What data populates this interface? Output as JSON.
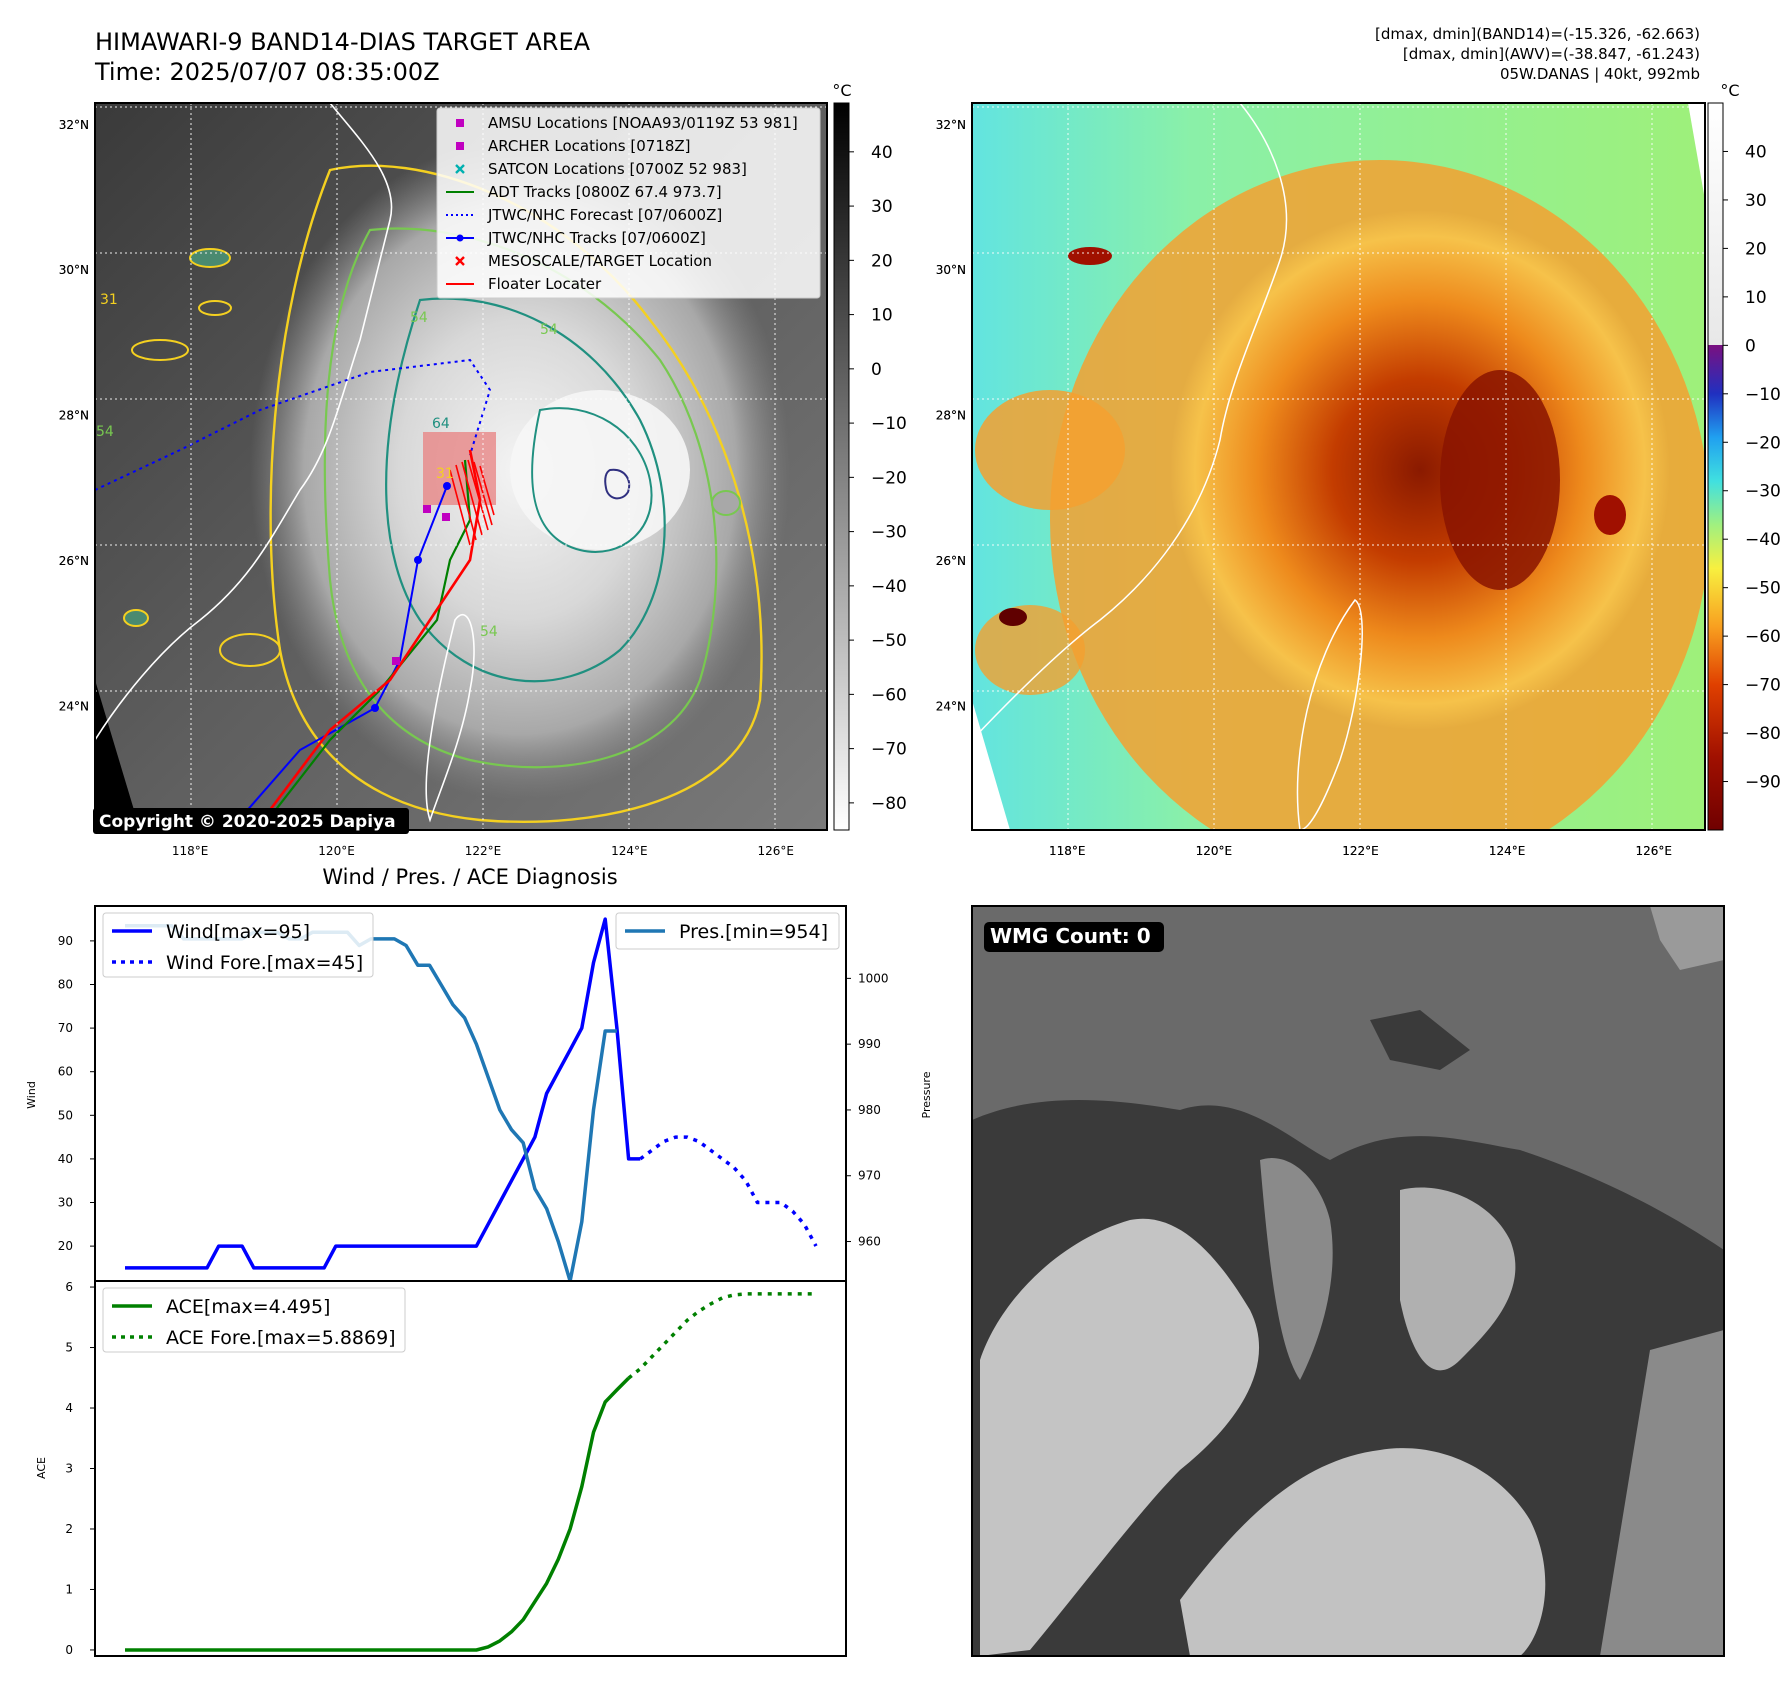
{
  "header": {
    "title_line1": "HIMAWARI-9 BAND14-DIAS TARGET AREA",
    "title_line2": "Time: 2025/07/07 08:35:00Z",
    "info_line1": "[dmax, dmin](BAND14)=(-15.326, -62.663)",
    "info_line2": "[dmax, dmin](AWV)=(-38.847, -61.243)",
    "info_line3": "05W.DANAS | 40kt, 992mb"
  },
  "maps": {
    "lon_labels": [
      "118°E",
      "120°E",
      "122°E",
      "124°E",
      "126°E"
    ],
    "lat_labels": [
      "32°N",
      "30°N",
      "28°N",
      "26°N",
      "24°N"
    ],
    "lon_values": [
      118,
      120,
      122,
      124,
      126
    ],
    "lat_values": [
      32,
      30,
      28,
      26,
      24
    ],
    "lon_range": [
      116.7,
      126.7
    ],
    "lat_range": [
      22.3,
      32.3
    ],
    "copyright": "Copyright © 2020-2025 Dapiya",
    "contour_labels": [
      "31",
      "54",
      "54",
      "64",
      "54",
      "54",
      "31"
    ]
  },
  "legend_map": {
    "items": [
      {
        "label": "AMSU Locations [NOAA93/0119Z 53 981]",
        "color": "#c000c0",
        "kind": "square"
      },
      {
        "label": "ARCHER Locations [0718Z]",
        "color": "#c000c0",
        "kind": "square"
      },
      {
        "label": "SATCON Locations [0700Z 52 983]",
        "color": "#00b0b0",
        "kind": "x"
      },
      {
        "label": "ADT Tracks [0800Z 67.4 973.7]",
        "color": "#008000",
        "kind": "line"
      },
      {
        "label": "JTWC/NHC Forecast [07/0600Z]",
        "color": "#0000ff",
        "kind": "dotted"
      },
      {
        "label": "JTWC/NHC Tracks [07/0600Z]",
        "color": "#0000ff",
        "kind": "line-dot"
      },
      {
        "label": "MESOSCALE/TARGET Location",
        "color": "#ff0000",
        "kind": "x"
      },
      {
        "label": "Floater Locater",
        "color": "#ff0000",
        "kind": "line"
      }
    ]
  },
  "colorbar_band14": {
    "unit": "°C",
    "ticks": [
      "40",
      "30",
      "20",
      "10",
      "0",
      "−10",
      "−20",
      "−30",
      "−40",
      "−50",
      "−60",
      "−70",
      "−80"
    ],
    "range": [
      -85,
      49
    ]
  },
  "colorbar_awv": {
    "unit": "°C",
    "ticks": [
      "40",
      "30",
      "20",
      "10",
      "0",
      "−10",
      "−20",
      "−30",
      "−40",
      "−50",
      "−60",
      "−70",
      "−80",
      "−90"
    ],
    "range": [
      -100,
      50
    ]
  },
  "diagnosis": {
    "title": "Wind / Pres. / ACE Diagnosis",
    "wind_ylabel": "Wind",
    "pres_ylabel": "Pressure",
    "ace_ylabel": "ACE",
    "legend_wind": "Wind[max=95]",
    "legend_wind_fore": "Wind Fore.[max=45]",
    "legend_pres": "Pres.[min=954]",
    "legend_ace": "ACE[max=4.495]",
    "legend_ace_fore": "ACE Fore.[max=5.8869]",
    "wind_ticks": [
      "20",
      "30",
      "40",
      "50",
      "60",
      "70",
      "80",
      "90"
    ],
    "pres_ticks": [
      "960",
      "970",
      "980",
      "990",
      "1000"
    ],
    "ace_ticks": [
      "0",
      "1",
      "2",
      "3",
      "4",
      "5",
      "6"
    ]
  },
  "chart_data": [
    {
      "type": "line",
      "title": "Wind / Pres. / ACE Diagnosis",
      "xlabel": "",
      "ylabel": "Wind",
      "ylim": [
        12,
        98
      ],
      "x": [
        0,
        1,
        2,
        3,
        4,
        5,
        6,
        7,
        8,
        9,
        10,
        11,
        12,
        13,
        14,
        15,
        16,
        17,
        18,
        19,
        20,
        21,
        22,
        23,
        24,
        25,
        26,
        27,
        28,
        29,
        30,
        31,
        32,
        33,
        34,
        35,
        36,
        37,
        38,
        39,
        40,
        41,
        42,
        43,
        44,
        45,
        46,
        47,
        48,
        49,
        50,
        51,
        52,
        53,
        54,
        55,
        56,
        57,
        58,
        59
      ],
      "series": [
        {
          "name": "Wind[max=95]",
          "color": "#0000ff",
          "style": "solid",
          "values": [
            15,
            15,
            15,
            15,
            15,
            15,
            15,
            15,
            20,
            20,
            20,
            15,
            15,
            15,
            15,
            15,
            15,
            15,
            20,
            20,
            20,
            20,
            20,
            20,
            20,
            20,
            20,
            20,
            20,
            20,
            20,
            25,
            30,
            35,
            40,
            45,
            55,
            60,
            65,
            70,
            85,
            95,
            70,
            40,
            40,
            null,
            null,
            null,
            null,
            null,
            null,
            null,
            null,
            null,
            null,
            null,
            null,
            null,
            null,
            null
          ]
        },
        {
          "name": "Wind Fore.[max=45]",
          "color": "#0000ff",
          "style": "dotted",
          "values": [
            null,
            null,
            null,
            null,
            null,
            null,
            null,
            null,
            null,
            null,
            null,
            null,
            null,
            null,
            null,
            null,
            null,
            null,
            null,
            null,
            null,
            null,
            null,
            null,
            null,
            null,
            null,
            null,
            null,
            null,
            null,
            null,
            null,
            null,
            null,
            null,
            null,
            null,
            null,
            null,
            null,
            null,
            null,
            null,
            40,
            42,
            44,
            45,
            45,
            44,
            42,
            40,
            38,
            35,
            30,
            30,
            30,
            28,
            25,
            20
          ]
        }
      ]
    },
    {
      "type": "line",
      "ylabel": "Pressure",
      "ylim": [
        954,
        1011
      ],
      "x": [
        0,
        1,
        2,
        3,
        4,
        5,
        6,
        7,
        8,
        9,
        10,
        11,
        12,
        13,
        14,
        15,
        16,
        17,
        18,
        19,
        20,
        21,
        22,
        23,
        24,
        25,
        26,
        27,
        28,
        29,
        30,
        31,
        32,
        33,
        34,
        35,
        36,
        37,
        38,
        39,
        40,
        41,
        42,
        43,
        44
      ],
      "series": [
        {
          "name": "Pres.[min=954]",
          "color": "#1f77b4",
          "style": "solid",
          "values": [
            1008,
            1008,
            1008,
            1008,
            1008,
            1006,
            1006,
            1006,
            1006,
            1006,
            1006,
            1007,
            1007,
            1007,
            1006,
            1006,
            1007,
            1007,
            1007,
            1007,
            1005,
            1006,
            1006,
            1006,
            1005,
            1002,
            1002,
            999,
            996,
            994,
            990,
            985,
            980,
            977,
            975,
            968,
            965,
            960,
            954,
            963,
            980,
            992,
            992,
            null,
            null
          ]
        }
      ]
    },
    {
      "type": "line",
      "ylabel": "ACE",
      "ylim": [
        -0.1,
        6.1
      ],
      "x": [
        0,
        1,
        2,
        3,
        4,
        5,
        6,
        7,
        8,
        9,
        10,
        11,
        12,
        13,
        14,
        15,
        16,
        17,
        18,
        19,
        20,
        21,
        22,
        23,
        24,
        25,
        26,
        27,
        28,
        29,
        30,
        31,
        32,
        33,
        34,
        35,
        36,
        37,
        38,
        39,
        40,
        41,
        42,
        43,
        44,
        45,
        46,
        47,
        48,
        49,
        50,
        51,
        52,
        53,
        54,
        55,
        56,
        57,
        58,
        59
      ],
      "series": [
        {
          "name": "ACE[max=4.495]",
          "color": "#008000",
          "style": "solid",
          "values": [
            0,
            0,
            0,
            0,
            0,
            0,
            0,
            0,
            0,
            0,
            0,
            0,
            0,
            0,
            0,
            0,
            0,
            0,
            0,
            0,
            0,
            0,
            0,
            0,
            0,
            0,
            0,
            0,
            0,
            0,
            0,
            0.05,
            0.15,
            0.3,
            0.5,
            0.8,
            1.1,
            1.5,
            2.0,
            2.7,
            3.6,
            4.1,
            4.3,
            4.495,
            null,
            null,
            null,
            null,
            null,
            null,
            null,
            null,
            null,
            null,
            null,
            null,
            null,
            null,
            null,
            null
          ]
        },
        {
          "name": "ACE Fore.[max=5.8869]",
          "color": "#008000",
          "style": "dotted",
          "values": [
            null,
            null,
            null,
            null,
            null,
            null,
            null,
            null,
            null,
            null,
            null,
            null,
            null,
            null,
            null,
            null,
            null,
            null,
            null,
            null,
            null,
            null,
            null,
            null,
            null,
            null,
            null,
            null,
            null,
            null,
            null,
            null,
            null,
            null,
            null,
            null,
            null,
            null,
            null,
            null,
            null,
            null,
            null,
            4.495,
            4.65,
            4.85,
            5.05,
            5.25,
            5.45,
            5.6,
            5.72,
            5.82,
            5.87,
            5.8869,
            5.8869,
            5.8869,
            5.8869,
            5.8869,
            5.8869,
            5.8869
          ]
        }
      ]
    }
  ],
  "wmg": {
    "label": "WMG Count: 0"
  }
}
